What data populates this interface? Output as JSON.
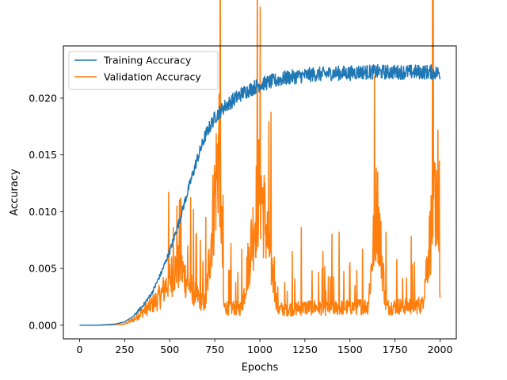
{
  "chart_data": {
    "type": "line",
    "title": "",
    "xlabel": "Epochs",
    "ylabel": "Accuracy",
    "xlim": [
      -90,
      2090
    ],
    "ylim": [
      -0.0012,
      0.0246
    ],
    "xticks": [
      0,
      250,
      500,
      750,
      1000,
      1250,
      1500,
      1750,
      2000
    ],
    "xtick_labels": [
      "0",
      "250",
      "500",
      "750",
      "1000",
      "1250",
      "1500",
      "1750",
      "2000"
    ],
    "yticks": [
      0.0,
      0.005,
      0.01,
      0.015,
      0.02
    ],
    "ytick_labels": [
      "0.000",
      "0.005",
      "0.010",
      "0.015",
      "0.020"
    ],
    "grid": false,
    "legend_position": "top-left",
    "series": [
      {
        "name": "Training Accuracy",
        "color": "#1f77b4",
        "x": [
          0,
          100,
          150,
          200,
          250,
          300,
          350,
          400,
          450,
          500,
          550,
          600,
          650,
          700,
          750,
          800,
          850,
          900,
          950,
          1000,
          1050,
          1100,
          1150,
          1200,
          1250,
          1300,
          1350,
          1400,
          1450,
          1500,
          1550,
          1600,
          1650,
          1700,
          1750,
          1800,
          1850,
          1900,
          1950,
          2000
        ],
        "values": [
          0.0,
          0.0,
          5e-05,
          0.0001,
          0.0003,
          0.0008,
          0.0017,
          0.0028,
          0.0045,
          0.0065,
          0.009,
          0.0118,
          0.0145,
          0.0168,
          0.0183,
          0.0192,
          0.0198,
          0.0204,
          0.0208,
          0.0212,
          0.0214,
          0.0216,
          0.0218,
          0.0219,
          0.022,
          0.0221,
          0.0221,
          0.0222,
          0.0222,
          0.0222,
          0.0223,
          0.0223,
          0.0223,
          0.0223,
          0.0223,
          0.0223,
          0.0223,
          0.0223,
          0.0223,
          0.0222
        ]
      },
      {
        "name": "Validation Accuracy",
        "color": "#ff7f0e",
        "x": [
          0,
          100,
          200,
          250,
          300,
          350,
          400,
          450,
          475,
          500,
          525,
          550,
          575,
          600,
          650,
          700,
          775,
          800,
          900,
          1000,
          1100,
          1200,
          1300,
          1400,
          1500,
          1600,
          1650,
          1700,
          1800,
          1900,
          1980,
          2000
        ],
        "values": [
          0.0,
          0.0,
          5e-05,
          0.0001,
          0.0005,
          0.0012,
          0.0018,
          0.0026,
          0.0034,
          0.0042,
          0.0048,
          0.0052,
          0.0046,
          0.0038,
          0.0026,
          0.0019,
          0.0165,
          0.0016,
          0.0015,
          0.0125,
          0.0014,
          0.0015,
          0.0016,
          0.0015,
          0.0016,
          0.0017,
          0.0108,
          0.0016,
          0.0017,
          0.0018,
          0.0124,
          0.0025
        ],
        "spikes": [
          [
            520,
            0.0086
          ],
          [
            540,
            0.0105
          ],
          [
            560,
            0.0112
          ],
          [
            600,
            0.007
          ],
          [
            670,
            0.0075
          ],
          [
            700,
            0.0095
          ],
          [
            775,
            0.0163
          ],
          [
            840,
            0.0072
          ],
          [
            900,
            0.0067
          ],
          [
            1000,
            0.0125
          ],
          [
            1080,
            0.006
          ],
          [
            1180,
            0.0065
          ],
          [
            1230,
            0.0086
          ],
          [
            1350,
            0.0065
          ],
          [
            1400,
            0.008
          ],
          [
            1440,
            0.0082
          ],
          [
            1500,
            0.0055
          ],
          [
            1570,
            0.0067
          ],
          [
            1605,
            0.0082
          ],
          [
            1665,
            0.0108
          ],
          [
            1700,
            0.0082
          ],
          [
            1760,
            0.0058
          ],
          [
            1840,
            0.0078
          ],
          [
            1960,
            0.0078
          ],
          [
            1985,
            0.0102
          ],
          [
            1995,
            0.0124
          ]
        ]
      }
    ]
  }
}
